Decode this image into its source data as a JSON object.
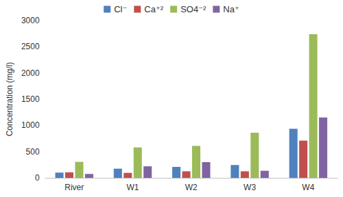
{
  "chart_data": {
    "type": "bar",
    "categories": [
      "River",
      "W1",
      "W2",
      "W3",
      "W4"
    ],
    "series": [
      {
        "name": "Cl⁻",
        "color": "#4f81bd",
        "values": [
          100,
          175,
          210,
          245,
          935
        ]
      },
      {
        "name": "Ca⁺²",
        "color": "#c0504d",
        "values": [
          105,
          95,
          125,
          125,
          710
        ]
      },
      {
        "name": "SO4⁻²",
        "color": "#9bbb59",
        "values": [
          305,
          580,
          610,
          860,
          2740
        ]
      },
      {
        "name": "Na⁺",
        "color": "#8064a2",
        "values": [
          75,
          220,
          300,
          135,
          1150
        ]
      }
    ],
    "y_label": "Concentration (mg/l)",
    "ylim": [
      0,
      3000
    ],
    "yticks": [
      0,
      500,
      1000,
      1500,
      2000,
      2500,
      3000
    ],
    "grid": false,
    "legend": "top"
  }
}
